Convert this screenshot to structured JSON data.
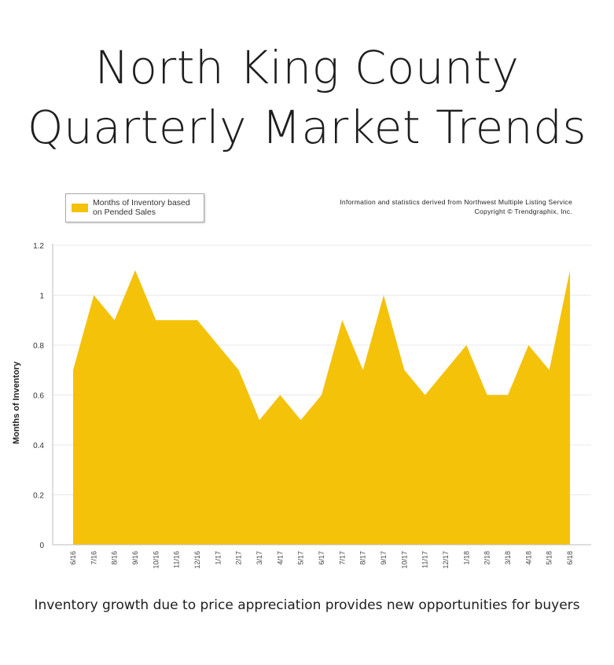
{
  "header": {
    "title_line1": "North King County",
    "title_line2": "Quarterly Market Trends"
  },
  "source": {
    "line1": "Information and statistics derived from Northwest Multiple Listing Service",
    "line2": "Copyright © Trendgraphix, Inc."
  },
  "caption": "Inventory growth due to price appreciation provides new opportunities for buyers",
  "colors": {
    "area": "#f5c20a",
    "grid": "#e9e9e9",
    "axis": "#bdbdbd"
  },
  "chart_data": {
    "type": "area",
    "title": "",
    "xlabel": "",
    "ylabel": "Months of Inventory",
    "ylim": [
      0,
      1.2
    ],
    "yticks": [
      "0",
      "0.2",
      "0.4",
      "0.6",
      "0.8",
      "1",
      "1.2"
    ],
    "grid": true,
    "legend_position": "top-left",
    "categories": [
      "6/16",
      "7/16",
      "8/16",
      "9/16",
      "10/16",
      "11/16",
      "12/16",
      "1/17",
      "2/17",
      "3/17",
      "4/17",
      "5/17",
      "6/17",
      "7/17",
      "8/17",
      "9/17",
      "10/17",
      "11/17",
      "12/17",
      "1/18",
      "2/18",
      "3/18",
      "4/18",
      "5/18",
      "6/18"
    ],
    "series": [
      {
        "name": "Months of Inventory based on Pended Sales",
        "values": [
          0.7,
          1.0,
          0.9,
          1.1,
          0.9,
          0.9,
          0.9,
          0.8,
          0.7,
          0.5,
          0.6,
          0.5,
          0.6,
          0.9,
          0.7,
          1.0,
          0.7,
          0.6,
          0.7,
          0.8,
          0.6,
          0.6,
          0.8,
          0.7,
          1.1
        ]
      }
    ]
  }
}
